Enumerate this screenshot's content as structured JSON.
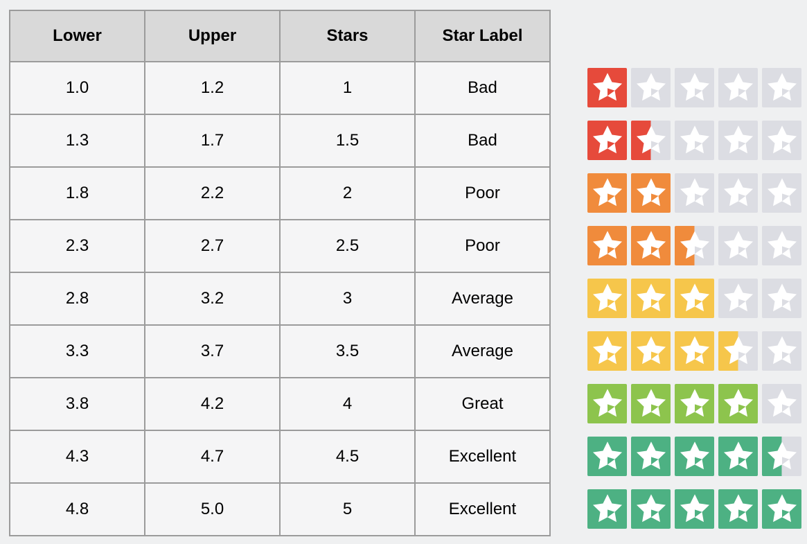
{
  "table": {
    "headers": [
      "Lower",
      "Upper",
      "Stars",
      "Star Label"
    ],
    "rows": [
      {
        "lower": "1.0",
        "upper": "1.2",
        "stars": "1",
        "label": "Bad",
        "rating": 1,
        "color": "#e64a3b"
      },
      {
        "lower": "1.3",
        "upper": "1.7",
        "stars": "1.5",
        "label": "Bad",
        "rating": 1.5,
        "color": "#e64a3b"
      },
      {
        "lower": "1.8",
        "upper": "2.2",
        "stars": "2",
        "label": "Poor",
        "rating": 2,
        "color": "#f08b3c"
      },
      {
        "lower": "2.3",
        "upper": "2.7",
        "stars": "2.5",
        "label": "Poor",
        "rating": 2.5,
        "color": "#f08b3c"
      },
      {
        "lower": "2.8",
        "upper": "3.2",
        "stars": "3",
        "label": "Average",
        "rating": 3,
        "color": "#f6c64b"
      },
      {
        "lower": "3.3",
        "upper": "3.7",
        "stars": "3.5",
        "label": "Average",
        "rating": 3.5,
        "color": "#f6c64b"
      },
      {
        "lower": "3.8",
        "upper": "4.2",
        "stars": "4",
        "label": "Great",
        "rating": 4,
        "color": "#8dc44d"
      },
      {
        "lower": "4.3",
        "upper": "4.7",
        "stars": "4.5",
        "label": "Excellent",
        "rating": 4.5,
        "color": "#4db183"
      },
      {
        "lower": "4.8",
        "upper": "5.0",
        "stars": "5",
        "label": "Excellent",
        "rating": 5,
        "color": "#4db183"
      }
    ]
  },
  "stars": {
    "max": 5,
    "empty_color": "#dcdde3",
    "star_color": "#ffffff"
  },
  "colors": {
    "page_bg": "#eff0f1",
    "header_bg": "#d9d9d9",
    "cell_bg": "#f5f5f6",
    "border": "#9b9b9b",
    "text": "#000000"
  }
}
